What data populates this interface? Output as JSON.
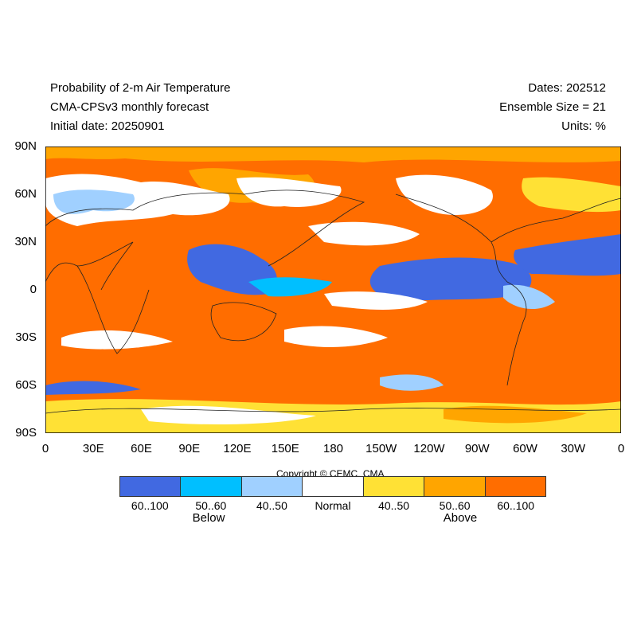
{
  "header": {
    "title_line1": "Probability of 2-m Air Temperature",
    "title_line2": "CMA-CPSv3 monthly forecast",
    "title_line3": "Initial date: 20250901",
    "dates": "Dates: 202512",
    "ensemble": "Ensemble Size = 21",
    "units": "Units: %"
  },
  "axes": {
    "lat_ticks": [
      "90N",
      "60N",
      "30N",
      "0",
      "30S",
      "60S",
      "90S"
    ],
    "lon_ticks": [
      "0",
      "30E",
      "60E",
      "90E",
      "120E",
      "150E",
      "180",
      "150W",
      "120W",
      "90W",
      "60W",
      "30W",
      "0"
    ]
  },
  "legend": {
    "copyright": "Copyright © CEMC, CMA",
    "bins": [
      {
        "label": "60..100",
        "color": "#4169e1"
      },
      {
        "label": "50..60",
        "color": "#00bfff"
      },
      {
        "label": "40..50",
        "color": "#a0d0ff"
      },
      {
        "label": "Normal",
        "color": "#ffffff"
      },
      {
        "label": "40..50",
        "color": "#ffe135"
      },
      {
        "label": "50..60",
        "color": "#ffa500"
      },
      {
        "label": "60..100",
        "color": "#ff6d00"
      }
    ],
    "below_label": "Below",
    "above_label": "Above"
  }
}
